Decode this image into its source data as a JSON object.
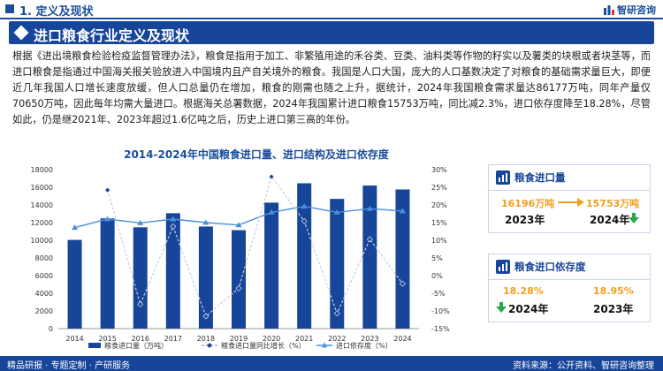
{
  "header": {
    "section_title": "1. 定义及现状",
    "logo_text": "智研咨询"
  },
  "banner": {
    "title": "进口粮食行业定义及现状"
  },
  "paragraph": "根据《进出境粮食检验检疫监督管理办法》，粮食是指用于加工、非繁殖用途的禾谷类、豆类、油料类等作物的籽实以及薯类的块根或者块茎等，而进口粮食是指通过中国海关报关验放进入中国境内且产自关境外的粮食。我国是人口大国，庞大的人口基数决定了对粮食的基础需求量巨大，即便近几年我国人口增长速度放缓，但人口总量仍在增加，粮食的刚需也随之上升，据统计，2024年我国粮食需求量达86177万吨，同年产量仅70650万吨，因此每年均需大量进口。根据海关总署数据，2024年我国累计进口粮食15753万吨，同比减2.3%，进口依存度降至18.28%，尽管如此，仍是继2021年、2023年超过1.6亿吨之后，历史上进口第三高的年份。",
  "chart_data": {
    "type": "bar",
    "title": "2014-2024年中国粮食进口量、进口结构及进口依存度",
    "categories": [
      "2014",
      "2015",
      "2016",
      "2017",
      "2018",
      "2019",
      "2020",
      "2021",
      "2022",
      "2023",
      "2024"
    ],
    "y_left": {
      "ylim": [
        0,
        18000
      ],
      "ticks": [
        0,
        2000,
        4000,
        6000,
        8000,
        10000,
        12000,
        14000,
        16000,
        18000
      ]
    },
    "y_right": {
      "ylim": [
        -15,
        30
      ],
      "ticks": [
        "-15%",
        "-10%",
        "-5%",
        "0%",
        "5%",
        "10%",
        "15%",
        "20%",
        "25%",
        "30%"
      ]
    },
    "series": [
      {
        "name": "粮食进口量（万吨）",
        "type": "bar",
        "axis": "left",
        "color": "#17459a",
        "values": [
          10042,
          12477,
          11468,
          13062,
          11555,
          11144,
          14262,
          16454,
          14687,
          16196,
          15753
        ]
      },
      {
        "name": "粮食进口量同比增长（%）",
        "type": "line",
        "axis": "right",
        "color": "#17459a",
        "dash": true,
        "values": [
          null,
          24.2,
          -8.1,
          13.9,
          -11.5,
          -3.6,
          28.0,
          15.4,
          -10.7,
          10.3,
          -2.3
        ]
      },
      {
        "name": "进口依存度（%）",
        "type": "line",
        "axis": "right",
        "color": "#4a90d9",
        "dash": false,
        "values": [
          13.6,
          16.0,
          14.9,
          16.0,
          15.0,
          14.3,
          17.9,
          19.6,
          17.9,
          18.95,
          18.28
        ]
      }
    ],
    "legend_position": "bottom"
  },
  "panel_import": {
    "title": "粮食进口量",
    "left_value": "16196万吨",
    "left_year": "2023年",
    "right_value": "15753万吨",
    "right_year": "2024年",
    "right_trend": "down"
  },
  "panel_dependency": {
    "title": "粮食进口依存度",
    "left_value": "18.28%",
    "left_year": "2024年",
    "left_trend": "down",
    "right_value": "18.95%",
    "right_year": "2023年"
  },
  "footer": {
    "left": "精品研报 · 专题定制 · 产研服务",
    "right": "资料来源：公开资料、智研咨询整理"
  },
  "colors": {
    "brand": "#17459a",
    "accent": "#f0a020",
    "down": "#2aa84a"
  }
}
